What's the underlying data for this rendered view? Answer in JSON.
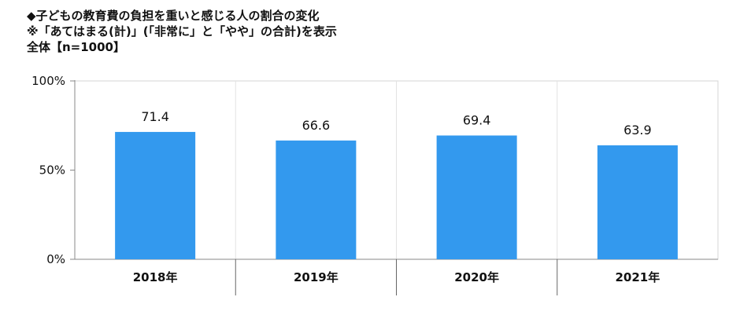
{
  "header": {
    "title": "◆子どもの教育費の負担を重いと感じる人の割合の変化",
    "note": "※「あてはまる(計)」(「非常に」と「やや」の合計)を表示",
    "sample": "全体【n=1000】"
  },
  "chart_data": {
    "type": "bar",
    "title": "◆子どもの教育費の負担を重いと感じる人の割合の変化",
    "categories": [
      "2018年",
      "2019年",
      "2020年",
      "2021年"
    ],
    "values": [
      71.4,
      66.6,
      69.4,
      63.9
    ],
    "value_labels": [
      "71.4",
      "66.6",
      "69.4",
      "63.9"
    ],
    "ylim": [
      0,
      100
    ],
    "yticks": [
      0,
      50,
      100
    ],
    "ytick_labels": [
      "0%",
      "50%",
      "100%"
    ],
    "xlabel": "",
    "ylabel": "",
    "grid": false,
    "legend": "none",
    "bar_color": "#3399ee",
    "frame_color": "#d4d4d4"
  }
}
